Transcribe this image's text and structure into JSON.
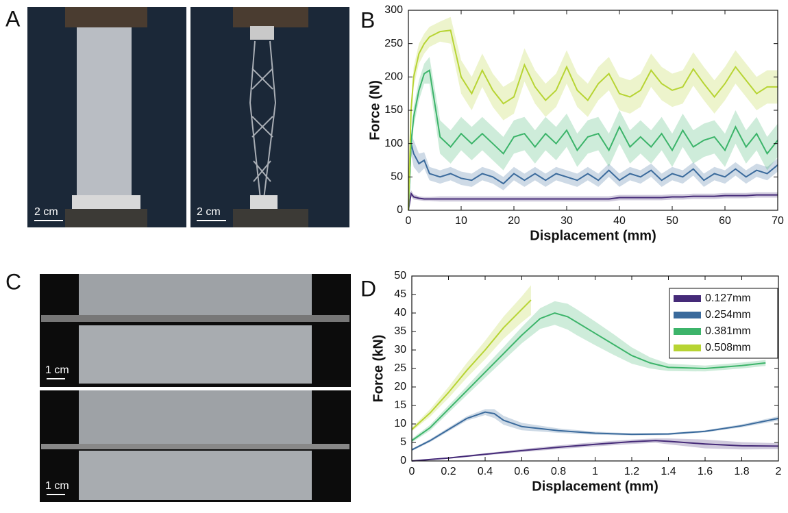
{
  "panel_labels": [
    "A",
    "B",
    "C",
    "D"
  ],
  "scale_bars": [
    "2 cm",
    "2 cm",
    "1 cm",
    "1 cm"
  ],
  "chart_data": [
    {
      "type": "line",
      "xlabel": "Displacement (mm)",
      "ylabel": "Force (N)",
      "xlim": [
        0,
        70
      ],
      "ylim": [
        0,
        300
      ],
      "xticks": [
        0,
        10,
        20,
        30,
        40,
        50,
        60,
        70
      ],
      "yticks": [
        0,
        50,
        100,
        150,
        200,
        250,
        300
      ],
      "x": [
        0,
        0.5,
        1,
        2,
        3,
        4,
        6,
        8,
        10,
        12,
        14,
        16,
        18,
        20,
        22,
        24,
        26,
        28,
        30,
        32,
        34,
        36,
        38,
        40,
        42,
        44,
        46,
        48,
        50,
        52,
        54,
        56,
        58,
        60,
        62,
        64,
        66,
        68,
        70
      ],
      "series": [
        {
          "color": "#452a78",
          "values": [
            0,
            25,
            20,
            18,
            17,
            17,
            17,
            17,
            17,
            17,
            17,
            17,
            17,
            17,
            17,
            17,
            17,
            17,
            17,
            17,
            17,
            17,
            17,
            19,
            19,
            19,
            19,
            19,
            20,
            20,
            21,
            21,
            21,
            22,
            22,
            22,
            23,
            23,
            23
          ],
          "error": [
            0,
            5,
            4,
            3,
            3,
            3,
            4,
            4,
            4,
            4,
            4,
            4,
            4,
            4,
            4,
            4,
            4,
            4,
            4,
            4,
            4,
            4,
            4,
            4,
            4,
            4,
            4,
            4,
            4,
            4,
            4,
            4,
            4,
            4,
            4,
            4,
            4,
            4,
            4
          ]
        },
        {
          "color": "#3a6a9c",
          "values": [
            0,
            100,
            85,
            70,
            75,
            55,
            50,
            55,
            48,
            45,
            55,
            50,
            40,
            55,
            45,
            55,
            45,
            55,
            50,
            45,
            55,
            45,
            60,
            45,
            55,
            50,
            60,
            45,
            55,
            50,
            62,
            45,
            55,
            50,
            62,
            50,
            60,
            55,
            68
          ],
          "error": [
            0,
            15,
            20,
            15,
            12,
            10,
            10,
            10,
            10,
            10,
            10,
            10,
            10,
            10,
            10,
            10,
            10,
            10,
            10,
            10,
            10,
            10,
            10,
            10,
            10,
            10,
            10,
            10,
            10,
            10,
            10,
            10,
            10,
            10,
            10,
            10,
            10,
            10,
            10
          ]
        },
        {
          "color": "#3cb46a",
          "values": [
            0,
            100,
            140,
            180,
            205,
            210,
            110,
            95,
            115,
            100,
            115,
            100,
            85,
            110,
            115,
            95,
            115,
            100,
            120,
            90,
            110,
            115,
            90,
            125,
            95,
            110,
            95,
            115,
            90,
            120,
            95,
            105,
            110,
            90,
            125,
            95,
            115,
            85,
            105
          ],
          "error": [
            0,
            10,
            15,
            15,
            15,
            20,
            25,
            25,
            25,
            25,
            25,
            25,
            25,
            25,
            25,
            25,
            25,
            25,
            25,
            25,
            25,
            25,
            25,
            25,
            25,
            25,
            25,
            25,
            25,
            25,
            25,
            25,
            25,
            25,
            25,
            25,
            25,
            25,
            25
          ]
        },
        {
          "color": "#b7d433",
          "values": [
            0,
            150,
            200,
            235,
            250,
            260,
            268,
            270,
            200,
            175,
            210,
            180,
            160,
            170,
            218,
            185,
            165,
            180,
            215,
            180,
            165,
            190,
            205,
            175,
            170,
            180,
            210,
            190,
            180,
            185,
            212,
            190,
            170,
            190,
            215,
            195,
            175,
            185,
            185
          ],
          "error": [
            0,
            10,
            15,
            15,
            15,
            15,
            15,
            20,
            25,
            25,
            25,
            25,
            25,
            25,
            25,
            25,
            25,
            25,
            25,
            25,
            25,
            25,
            25,
            25,
            25,
            25,
            25,
            25,
            25,
            25,
            25,
            25,
            25,
            25,
            25,
            25,
            25,
            25,
            25
          ]
        }
      ]
    },
    {
      "type": "line",
      "xlabel": "Displacement (mm)",
      "ylabel": "Force (kN)",
      "xlim": [
        0,
        2
      ],
      "ylim": [
        0,
        50
      ],
      "xticks": [
        0,
        0.2,
        0.4,
        0.6,
        0.8,
        1,
        1.2,
        1.4,
        1.6,
        1.8,
        2
      ],
      "yticks": [
        0,
        5,
        10,
        15,
        20,
        25,
        30,
        35,
        40,
        45,
        50
      ],
      "legend": "upper right",
      "series": [
        {
          "name": "0.127mm",
          "color": "#452a78",
          "x": [
            0,
            0.2,
            0.4,
            0.6,
            0.8,
            1.0,
            1.2,
            1.33,
            1.4,
            1.6,
            1.8,
            2.0
          ],
          "values": [
            0,
            0.8,
            1.8,
            2.8,
            3.7,
            4.5,
            5.2,
            5.5,
            5.3,
            4.6,
            4.1,
            4.0
          ],
          "error": [
            0,
            0.2,
            0.3,
            0.4,
            0.5,
            0.6,
            0.6,
            0.6,
            0.8,
            1.2,
            1.0,
            0.8
          ]
        },
        {
          "name": "0.254mm",
          "color": "#3a6a9c",
          "x": [
            0,
            0.1,
            0.2,
            0.3,
            0.4,
            0.45,
            0.5,
            0.6,
            0.8,
            1.0,
            1.2,
            1.4,
            1.6,
            1.8,
            2.0
          ],
          "values": [
            3,
            5.5,
            8.5,
            11.5,
            13.2,
            12.8,
            11,
            9.3,
            8.2,
            7.5,
            7.2,
            7.3,
            8.0,
            9.5,
            11.5
          ],
          "error": [
            0.3,
            0.4,
            0.5,
            0.6,
            0.8,
            1.2,
            1.2,
            1.0,
            0.6,
            0.4,
            0.3,
            0.3,
            0.3,
            0.4,
            0.6
          ]
        },
        {
          "name": "0.381mm",
          "color": "#3cb46a",
          "x": [
            0,
            0.1,
            0.2,
            0.3,
            0.4,
            0.5,
            0.6,
            0.7,
            0.78,
            0.85,
            0.9,
            1.0,
            1.1,
            1.2,
            1.3,
            1.4,
            1.6,
            1.8,
            1.93
          ],
          "values": [
            5.5,
            9,
            14,
            19,
            24,
            29,
            34,
            38.5,
            40,
            39,
            37.5,
            34.5,
            31.5,
            28.5,
            26.5,
            25.3,
            25,
            25.8,
            26.5
          ],
          "error": [
            0.5,
            0.8,
            1,
            1.2,
            1.5,
            1.8,
            2.2,
            2.8,
            3.2,
            3.5,
            3.5,
            3.2,
            2.8,
            2.2,
            1.5,
            1.0,
            0.8,
            0.8,
            0.8
          ]
        },
        {
          "name": "0.508mm",
          "color": "#b7d433",
          "x": [
            0,
            0.1,
            0.2,
            0.3,
            0.4,
            0.5,
            0.6,
            0.65
          ],
          "values": [
            8.5,
            13,
            18.5,
            24.5,
            30,
            36,
            41,
            43.5
          ],
          "error": [
            0.5,
            1,
            1.5,
            2,
            2.5,
            3,
            3.5,
            4
          ]
        }
      ]
    }
  ]
}
